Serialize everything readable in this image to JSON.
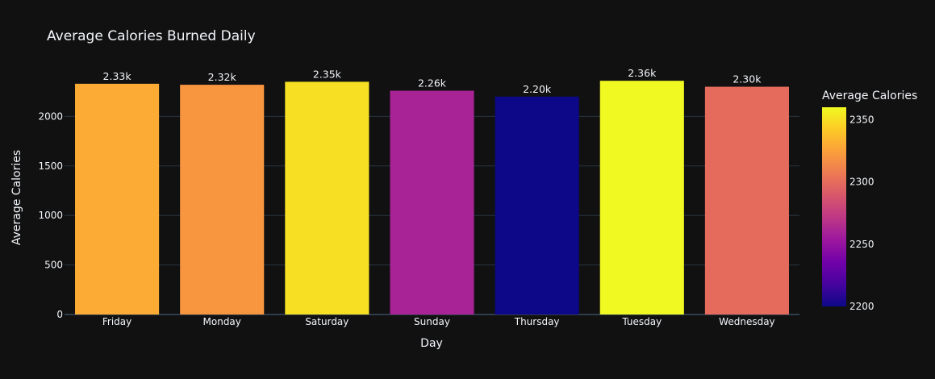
{
  "chart_data": {
    "type": "bar",
    "title": "Average Calories Burned Daily",
    "xlabel": "Day",
    "ylabel": "Average Calories",
    "categories": [
      "Friday",
      "Monday",
      "Saturday",
      "Sunday",
      "Thursday",
      "Tuesday",
      "Wednesday"
    ],
    "values": [
      2330,
      2320,
      2350,
      2260,
      2200,
      2360,
      2300
    ],
    "data_labels": [
      "2.33k",
      "2.32k",
      "2.35k",
      "2.26k",
      "2.20k",
      "2.36k",
      "2.30k"
    ],
    "ylim": [
      0,
      2500
    ],
    "yticks": [
      0,
      500,
      1000,
      1500,
      2000
    ],
    "grid": true,
    "colorbar": {
      "title": "Average Calories",
      "range": [
        2200,
        2360
      ],
      "ticks": [
        2200,
        2250,
        2300,
        2350
      ],
      "colorscale": [
        "#0d0887",
        "#46039f",
        "#7201a8",
        "#9c179e",
        "#bd3786",
        "#d8576b",
        "#ed7953",
        "#fb9f3a",
        "#fdca26",
        "#f0f921"
      ]
    },
    "colors": {
      "background": "#111111",
      "grid": "#283442",
      "text": "#f2f5fa"
    }
  }
}
